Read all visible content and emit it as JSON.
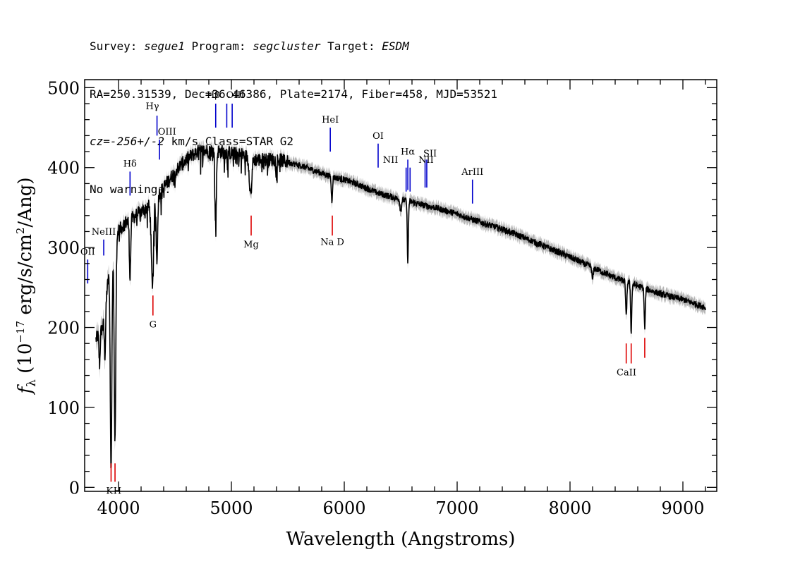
{
  "header": {
    "line1": [
      {
        "text": "Survey: ",
        "italic": false
      },
      {
        "text": "segue1",
        "italic": true
      },
      {
        "text": " Program: ",
        "italic": false
      },
      {
        "text": "segcluster",
        "italic": true
      },
      {
        "text": " Target: ",
        "italic": false
      },
      {
        "text": "ESDM",
        "italic": true
      }
    ],
    "line2": "RA=250.31539, Dec=36.46386, Plate=2174, Fiber=458, MJD=53521",
    "line3": [
      {
        "text": "cz=-256+/-2",
        "italic": true
      },
      {
        "text": " km/s Class=STAR G2",
        "italic": false
      }
    ],
    "line4": "No warnings."
  },
  "chart_data": {
    "type": "line",
    "xlabel": "Wavelength (Angstroms)",
    "ylabel_parts": {
      "f": "f",
      "sub": "λ",
      "pre": " (10",
      "exp1": "−17",
      "mid": " erg/s/cm",
      "exp2": "2",
      "post": "/Ang)"
    },
    "xlim": [
      3700,
      9300
    ],
    "ylim": [
      -5,
      510
    ],
    "x_ticks": [
      4000,
      5000,
      6000,
      7000,
      8000,
      9000
    ],
    "y_ticks": [
      0,
      100,
      200,
      300,
      400,
      500
    ],
    "colors": {
      "flux": "#000000",
      "error": "#b4b4b4",
      "emission": "#0000cc",
      "absorption": "#dd0000"
    },
    "continuum_points": [
      [
        3800,
        185
      ],
      [
        3860,
        200
      ],
      [
        3900,
        250
      ],
      [
        3950,
        300
      ],
      [
        4000,
        320
      ],
      [
        4050,
        330
      ],
      [
        4100,
        335
      ],
      [
        4200,
        345
      ],
      [
        4300,
        355
      ],
      [
        4400,
        375
      ],
      [
        4500,
        395
      ],
      [
        4600,
        410
      ],
      [
        4700,
        420
      ],
      [
        4800,
        422
      ],
      [
        4900,
        420
      ],
      [
        5000,
        418
      ],
      [
        5100,
        416
      ],
      [
        5200,
        410
      ],
      [
        5300,
        410
      ],
      [
        5400,
        410
      ],
      [
        5500,
        407
      ],
      [
        5600,
        403
      ],
      [
        5700,
        398
      ],
      [
        5800,
        393
      ],
      [
        5900,
        388
      ],
      [
        6000,
        385
      ],
      [
        6100,
        380
      ],
      [
        6200,
        374
      ],
      [
        6300,
        368
      ],
      [
        6400,
        364
      ],
      [
        6500,
        360
      ],
      [
        6600,
        357
      ],
      [
        6700,
        353
      ],
      [
        6800,
        350
      ],
      [
        7000,
        342
      ],
      [
        7200,
        332
      ],
      [
        7400,
        323
      ],
      [
        7600,
        312
      ],
      [
        7800,
        300
      ],
      [
        8000,
        288
      ],
      [
        8200,
        275
      ],
      [
        8400,
        262
      ],
      [
        8600,
        252
      ],
      [
        8800,
        242
      ],
      [
        9000,
        235
      ],
      [
        9200,
        225
      ]
    ],
    "absorption_features": [
      {
        "center": 3934,
        "width": 7,
        "depth": 260
      },
      {
        "center": 3969,
        "width": 7,
        "depth": 250
      },
      {
        "center": 3880,
        "width": 6,
        "depth": 60
      },
      {
        "center": 3832,
        "width": 5,
        "depth": 40
      },
      {
        "center": 4102,
        "width": 6,
        "depth": 70
      },
      {
        "center": 4300,
        "width": 10,
        "depth": 100
      },
      {
        "center": 4340,
        "width": 6,
        "depth": 80
      },
      {
        "center": 4861,
        "width": 6,
        "depth": 95
      },
      {
        "center": 5170,
        "width": 10,
        "depth": 45
      },
      {
        "center": 5890,
        "width": 5,
        "depth": 30
      },
      {
        "center": 6563,
        "width": 5,
        "depth": 75
      },
      {
        "center": 6500,
        "width": 6,
        "depth": 15
      },
      {
        "center": 8498,
        "width": 5,
        "depth": 45
      },
      {
        "center": 8542,
        "width": 5,
        "depth": 60
      },
      {
        "center": 8662,
        "width": 5,
        "depth": 50
      },
      {
        "center": 8200,
        "width": 6,
        "depth": 15
      }
    ],
    "emission_lines": [
      {
        "label": "NeIII",
        "wave": 3869,
        "y1": 290,
        "y2": 310,
        "lx": 3869,
        "ly": 316
      },
      {
        "label": "OII",
        "wave": 3727,
        "y1": 255,
        "y2": 285,
        "lx": 3727,
        "ly": 291
      },
      {
        "label": "Hδ",
        "wave": 4102,
        "y1": 365,
        "y2": 395,
        "lx": 4102,
        "ly": 401
      },
      {
        "label": "Hγ",
        "wave": 4341,
        "y1": 440,
        "y2": 465,
        "lx": 4300,
        "ly": 473
      },
      {
        "label": "OIII",
        "wave": 4363,
        "y1": 410,
        "y2": 435,
        "lx": 4430,
        "ly": 441
      },
      {
        "label": "Hβ",
        "wave": 4861,
        "y1": 450,
        "y2": 480,
        "lx": 4840,
        "ly": 487
      },
      {
        "label": "OIII",
        "wave": 4959,
        "y1": 450,
        "y2": 480,
        "lx": 5035,
        "ly": 487
      },
      {
        "label": "OIII",
        "wave": 5007,
        "y1": 450,
        "y2": 480,
        "lx": 5035,
        "ly": 487
      },
      {
        "label": "HeI",
        "wave": 5876,
        "y1": 420,
        "y2": 450,
        "lx": 5876,
        "ly": 456
      },
      {
        "label": "OI",
        "wave": 6300,
        "y1": 400,
        "y2": 430,
        "lx": 6300,
        "ly": 436
      },
      {
        "label": "NII",
        "wave": 6548,
        "y1": 370,
        "y2": 400,
        "lx": 6410,
        "ly": 406
      },
      {
        "label": "Hα",
        "wave": 6563,
        "y1": 372,
        "y2": 410,
        "lx": 6563,
        "ly": 416
      },
      {
        "label": "NII",
        "wave": 6583,
        "y1": 370,
        "y2": 400,
        "lx": 6725,
        "ly": 406
      },
      {
        "label": "SII",
        "wave": 6716,
        "y1": 375,
        "y2": 410,
        "lx": 6760,
        "ly": 414
      },
      {
        "label": "SII",
        "wave": 6731,
        "y1": 375,
        "y2": 410,
        "lx": 6760,
        "ly": 414
      },
      {
        "label": "ArIII",
        "wave": 7136,
        "y1": 355,
        "y2": 385,
        "lx": 7136,
        "ly": 391
      }
    ],
    "absorption_lines": [
      {
        "label": "K",
        "wave": 3934,
        "y1": 7,
        "y2": 30,
        "lx": 3920,
        "ly": -8
      },
      {
        "label": "H",
        "wave": 3969,
        "y1": 7,
        "y2": 30,
        "lx": 3990,
        "ly": -8
      },
      {
        "label": "G",
        "wave": 4305,
        "y1": 215,
        "y2": 240,
        "lx": 4305,
        "ly": 200
      },
      {
        "label": "Mg",
        "wave": 5175,
        "y1": 315,
        "y2": 340,
        "lx": 5175,
        "ly": 300
      },
      {
        "label": "Na D",
        "wave": 5894,
        "y1": 315,
        "y2": 340,
        "lx": 5894,
        "ly": 303
      },
      {
        "label": "CaII",
        "wave": 8498,
        "y1": 155,
        "y2": 180,
        "lx": 8500,
        "ly": 140
      },
      {
        "label": "",
        "wave": 8542,
        "y1": 155,
        "y2": 180,
        "lx": 8542,
        "ly": 140
      },
      {
        "label": "",
        "wave": 8662,
        "y1": 162,
        "y2": 187,
        "lx": 8662,
        "ly": 140
      }
    ]
  }
}
